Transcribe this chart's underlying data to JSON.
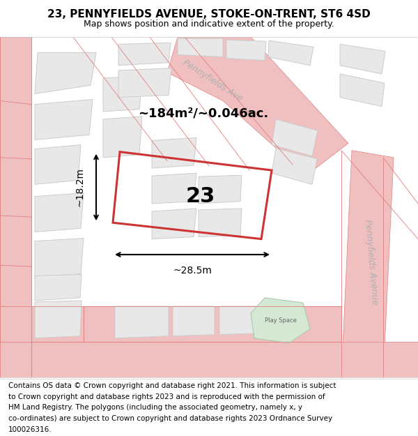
{
  "title_line1": "23, PENNYFIELDS AVENUE, STOKE-ON-TRENT, ST6 4SD",
  "title_line2": "Map shows position and indicative extent of the property.",
  "footer_lines": [
    "Contains OS data © Crown copyright and database right 2021. This information is subject",
    "to Crown copyright and database rights 2023 and is reproduced with the permission of",
    "HM Land Registry. The polygons (including the associated geometry, namely x, y",
    "co-ordinates) are subject to Crown copyright and database rights 2023 Ordnance Survey",
    "100026316."
  ],
  "area_label": "~184m²/~0.046ac.",
  "number_label": "23",
  "width_label": "~28.5m",
  "height_label": "~18.2m",
  "map_bg": "#f5f5f5",
  "road_color": "#f0c0c0",
  "road_line_color": "#e08080",
  "building_fill": "#e8e8e8",
  "building_stroke": "#cccccc",
  "highlight_stroke": "#cc3333",
  "green_fill": "#d4e8d4",
  "street_label_diag": "Pennyfields Ave",
  "street_label_vert": "Pennyfields Avenue",
  "play_space_label": "Play Space",
  "title_fontsize": 11,
  "subtitle_fontsize": 9,
  "footer_fontsize": 7.5
}
